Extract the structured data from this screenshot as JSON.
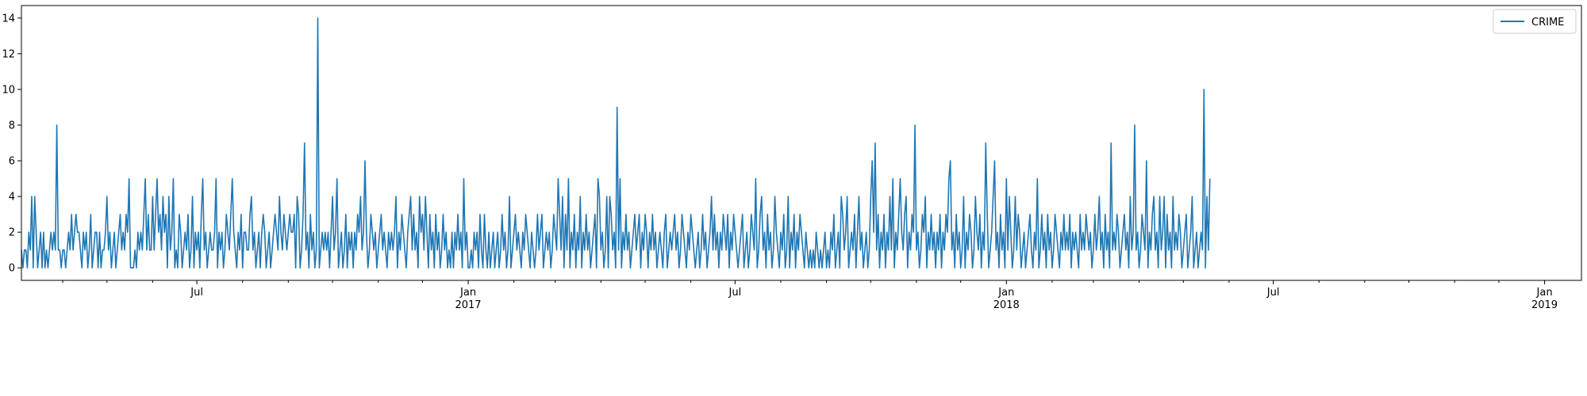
{
  "chart_data": {
    "type": "line",
    "title": "",
    "xlabel": "",
    "ylabel": "",
    "x_range": [
      "2016-03-04",
      "2019-01-26"
    ],
    "ylim": [
      -0.7,
      14.7
    ],
    "y_ticks": [
      0,
      2,
      4,
      6,
      8,
      10,
      12,
      14
    ],
    "x_ticks": [
      {
        "date": "2016-07-01",
        "label": "Jul",
        "sublabel": ""
      },
      {
        "date": "2017-01-01",
        "label": "Jan",
        "sublabel": "2017"
      },
      {
        "date": "2017-07-01",
        "label": "Jul",
        "sublabel": ""
      },
      {
        "date": "2018-01-01",
        "label": "Jan",
        "sublabel": "2018"
      },
      {
        "date": "2018-07-01",
        "label": "Jul",
        "sublabel": ""
      },
      {
        "date": "2019-01-01",
        "label": "Jan",
        "sublabel": "2019"
      }
    ],
    "minor_ticks": [
      "2016-04-01",
      "2016-05-01",
      "2016-06-01",
      "2016-08-01",
      "2016-09-01",
      "2016-10-01",
      "2016-11-01",
      "2016-12-01",
      "2017-02-01",
      "2017-03-01",
      "2017-04-01",
      "2017-05-01",
      "2017-06-01",
      "2017-08-01",
      "2017-09-01",
      "2017-10-01",
      "2017-11-01",
      "2017-12-01",
      "2018-02-01",
      "2018-03-01",
      "2018-04-01",
      "2018-05-01",
      "2018-06-01",
      "2018-08-01",
      "2018-09-01",
      "2018-10-01",
      "2018-11-01",
      "2018-12-01"
    ],
    "legend": {
      "position": "top-right",
      "entries": [
        "CRIME"
      ]
    },
    "grid": false,
    "series": [
      {
        "name": "CRIME",
        "color": "#1f77b4",
        "start_date": "2016-03-04",
        "frequency": "daily",
        "values": [
          1,
          0,
          1,
          1,
          0,
          2,
          1,
          4,
          0,
          4,
          2,
          0,
          1,
          2,
          0,
          2,
          0,
          1,
          0,
          1,
          2,
          1,
          2,
          1,
          8,
          1,
          1,
          0,
          1,
          1,
          0,
          1,
          2,
          1,
          3,
          1,
          2,
          3,
          2,
          2,
          1,
          0,
          2,
          1,
          2,
          0,
          1,
          3,
          0,
          1,
          2,
          2,
          0,
          2,
          0,
          1,
          1,
          2,
          4,
          1,
          2,
          0,
          1,
          2,
          0,
          1,
          2,
          3,
          1,
          2,
          1,
          3,
          2,
          5,
          0,
          0,
          0,
          1,
          0,
          2,
          1,
          2,
          1,
          3,
          5,
          1,
          3,
          1,
          1,
          4,
          1,
          3,
          5,
          2,
          3,
          1,
          4,
          2,
          3,
          0,
          4,
          1,
          2,
          5,
          0,
          1,
          0,
          3,
          2,
          0,
          1,
          2,
          1,
          3,
          0,
          1,
          4,
          0,
          2,
          1,
          2,
          0,
          3,
          5,
          1,
          2,
          0,
          1,
          2,
          1,
          1,
          2,
          5,
          0,
          2,
          1,
          2,
          0,
          1,
          3,
          2,
          1,
          3,
          5,
          2,
          1,
          0,
          2,
          1,
          3,
          0,
          2,
          2,
          1,
          1,
          3,
          4,
          1,
          2,
          0,
          1,
          2,
          0,
          2,
          3,
          2,
          0,
          1,
          2,
          0,
          1,
          2,
          3,
          2,
          1,
          4,
          2,
          1,
          3,
          2,
          1,
          2,
          3,
          2,
          2,
          3,
          0,
          4,
          3,
          0,
          1,
          3,
          7,
          1,
          2,
          0,
          3,
          1,
          2,
          0,
          1,
          14,
          0,
          1,
          2,
          1,
          2,
          1,
          2,
          0,
          2,
          4,
          1,
          2,
          5,
          0,
          1,
          2,
          0,
          1,
          3,
          0,
          2,
          1,
          2,
          0,
          2,
          1,
          3,
          2,
          4,
          1,
          2,
          6,
          2,
          0,
          1,
          3,
          2,
          1,
          2,
          0,
          1,
          2,
          3,
          1,
          2,
          1,
          0,
          2,
          1,
          2,
          1,
          2,
          4,
          0,
          2,
          1,
          3,
          2,
          1,
          0,
          2,
          3,
          4,
          1,
          3,
          1,
          2,
          0,
          4,
          2,
          3,
          1,
          4,
          2,
          0,
          3,
          1,
          2,
          0,
          3,
          1,
          2,
          0,
          1,
          3,
          1,
          2,
          0,
          1,
          0,
          2,
          0,
          2,
          1,
          3,
          1,
          2,
          0,
          5,
          1,
          2,
          0,
          0,
          1,
          0,
          2,
          1,
          2,
          0,
          3,
          1,
          0,
          3,
          1,
          0,
          2,
          0,
          1,
          2,
          0,
          1,
          2,
          0,
          1,
          3,
          1,
          2,
          0,
          1,
          4,
          0,
          1,
          2,
          3,
          1,
          2,
          1,
          0,
          2,
          1,
          3,
          2,
          1,
          0,
          2,
          1,
          0,
          1,
          3,
          1,
          2,
          3,
          0,
          1,
          2,
          1,
          2,
          0,
          1,
          3,
          2,
          1,
          5,
          3,
          1,
          4,
          0,
          3,
          1,
          5,
          0,
          2,
          1,
          3,
          0,
          2,
          1,
          4,
          0,
          2,
          1,
          3,
          1,
          2,
          0,
          1,
          2,
          3,
          0,
          5,
          4,
          1,
          2,
          0,
          1,
          4,
          0,
          4,
          3,
          1,
          2,
          0,
          9,
          1,
          5,
          0,
          2,
          1,
          3,
          1,
          2,
          0,
          1,
          2,
          3,
          1,
          2,
          3,
          0,
          2,
          1,
          3,
          2,
          0,
          2,
          1,
          3,
          1,
          2,
          0,
          1,
          2,
          1,
          0,
          2,
          3,
          0,
          1,
          2,
          1,
          2,
          3,
          1,
          2,
          0,
          1,
          3,
          2,
          1,
          0,
          2,
          1,
          3,
          2,
          1,
          0,
          1,
          2,
          0,
          1,
          3,
          1,
          2,
          0,
          1,
          2,
          4,
          1,
          3,
          1,
          2,
          0,
          2,
          1,
          3,
          2,
          1,
          3,
          0,
          2,
          1,
          3,
          2,
          1,
          0,
          1,
          2,
          3,
          0,
          1,
          2,
          0,
          1,
          3,
          2,
          1,
          5,
          0,
          1,
          3,
          4,
          1,
          2,
          0,
          3,
          1,
          2,
          0,
          1,
          4,
          2,
          1,
          0,
          2,
          1,
          3,
          0,
          1,
          4,
          0,
          2,
          1,
          3,
          0,
          2,
          1,
          3,
          2,
          1,
          0,
          2,
          1,
          0,
          1,
          0,
          1,
          0,
          2,
          1,
          0,
          1,
          0,
          1,
          2,
          0,
          1,
          0,
          2,
          1,
          3,
          0,
          1,
          2,
          0,
          4,
          3,
          1,
          2,
          4,
          0,
          1,
          2,
          1,
          3,
          0,
          2,
          4,
          1,
          2,
          0,
          1,
          2,
          0,
          1,
          4,
          6,
          2,
          7,
          1,
          3,
          0,
          2,
          1,
          3,
          0,
          2,
          1,
          4,
          1,
          5,
          0,
          2,
          1,
          3,
          5,
          2,
          1,
          3,
          4,
          0,
          2,
          1,
          3,
          2,
          8,
          1,
          2,
          0,
          1,
          3,
          2,
          4,
          0,
          2,
          1,
          3,
          1,
          2,
          0,
          2,
          1,
          3,
          0,
          2,
          1,
          3,
          2,
          5,
          6,
          1,
          2,
          0,
          3,
          1,
          2,
          0,
          1,
          4,
          0,
          2,
          1,
          3,
          2,
          0,
          1,
          4,
          2,
          1,
          3,
          0,
          2,
          1,
          7,
          3,
          0,
          1,
          2,
          4,
          6,
          1,
          2,
          0,
          3,
          1,
          2,
          0,
          5,
          1,
          4,
          2,
          0,
          1,
          4,
          1,
          3,
          2,
          0,
          1,
          2,
          0,
          1,
          2,
          3,
          1,
          0,
          2,
          1,
          5,
          0,
          1,
          3,
          1,
          2,
          0,
          3,
          1,
          2,
          0,
          1,
          3,
          2,
          1,
          0,
          2,
          1,
          3,
          1,
          2,
          1,
          3,
          0,
          2,
          1,
          2,
          1,
          0,
          3,
          1,
          2,
          1,
          3,
          2,
          1,
          2,
          0,
          1,
          3,
          1,
          2,
          4,
          1,
          2,
          0,
          3,
          1,
          2,
          0,
          7,
          1,
          2,
          1,
          3,
          2,
          0,
          1,
          2,
          3,
          1,
          2,
          0,
          4,
          1,
          2,
          8,
          1,
          2,
          0,
          1,
          3,
          2,
          1,
          6,
          0,
          2,
          1,
          3,
          4,
          1,
          2,
          0,
          4,
          1,
          2,
          4,
          0,
          3,
          1,
          2,
          0,
          4,
          1,
          2,
          1,
          3,
          2,
          0,
          1,
          2,
          3,
          0,
          1,
          2,
          4,
          0,
          1,
          2,
          0,
          1,
          2,
          1,
          10,
          0,
          4,
          1,
          5
        ]
      }
    ]
  }
}
